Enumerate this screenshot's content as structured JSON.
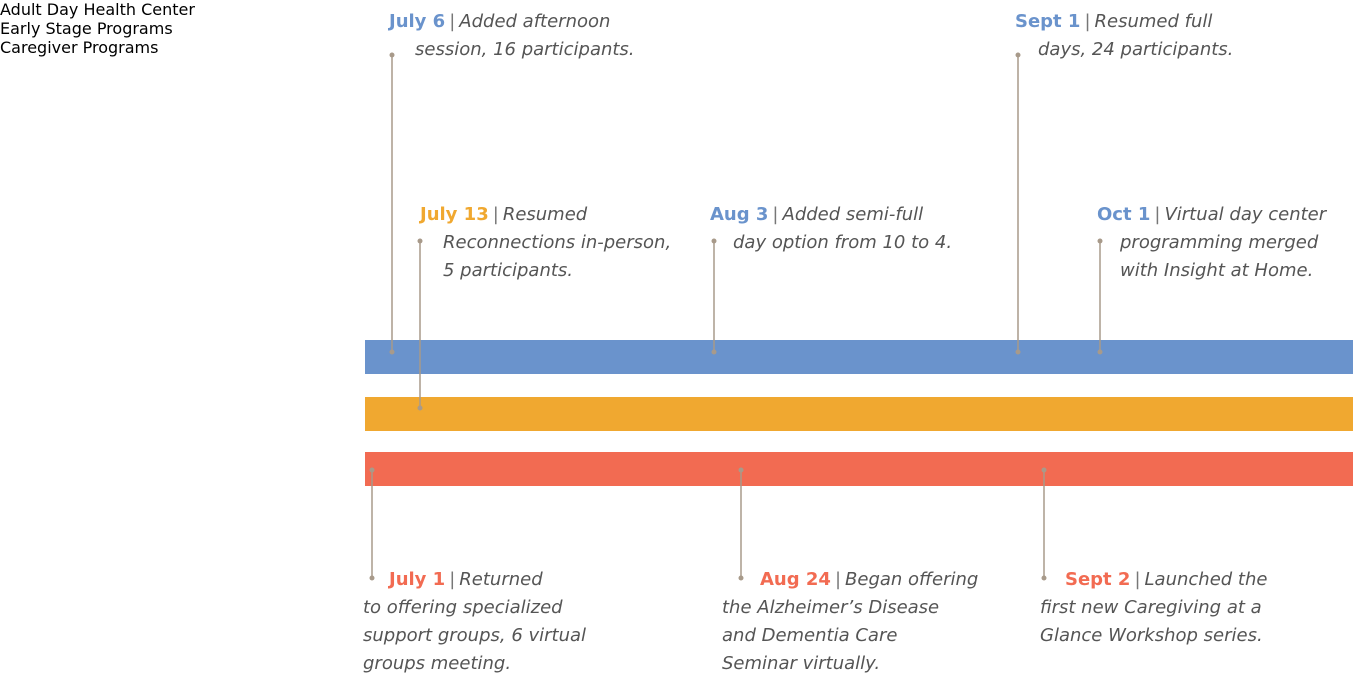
{
  "separator": "|",
  "tracks": [
    {
      "label": "Adult Day Health Center",
      "color": "#6a93cc",
      "events": [
        {
          "date": "July 6",
          "lines": [
            "Added afternoon",
            "session, 16 participants."
          ]
        },
        {
          "date": "Aug 3",
          "lines": [
            "Added semi-full",
            "day option from 10 to 4."
          ]
        },
        {
          "date": "Sept 1",
          "lines": [
            "Resumed full",
            "days, 24 participants."
          ]
        },
        {
          "date": "Oct 1",
          "lines": [
            "Virtual day center",
            "programming merged",
            "with Insight at Home."
          ]
        }
      ]
    },
    {
      "label": "Early Stage Programs",
      "color": "#f0a830",
      "events": [
        {
          "date": "July 13",
          "lines": [
            "Resumed",
            "Reconnections in-person,",
            "5 participants."
          ]
        }
      ]
    },
    {
      "label": "Caregiver Programs",
      "color": "#f26b52",
      "events": [
        {
          "date": "July 1",
          "lines": [
            "Returned",
            "to offering specialized",
            "support groups, 6 virtual",
            "groups meeting."
          ]
        },
        {
          "date": "Aug 24",
          "lines": [
            "Began offering",
            "the Alzheimer’s Disease",
            "and Dementia Care",
            "Seminar virtually."
          ]
        },
        {
          "date": "Sept 2",
          "lines": [
            "Launched the",
            "first new Caregiving at a",
            "Glance Workshop series."
          ]
        }
      ]
    }
  ]
}
